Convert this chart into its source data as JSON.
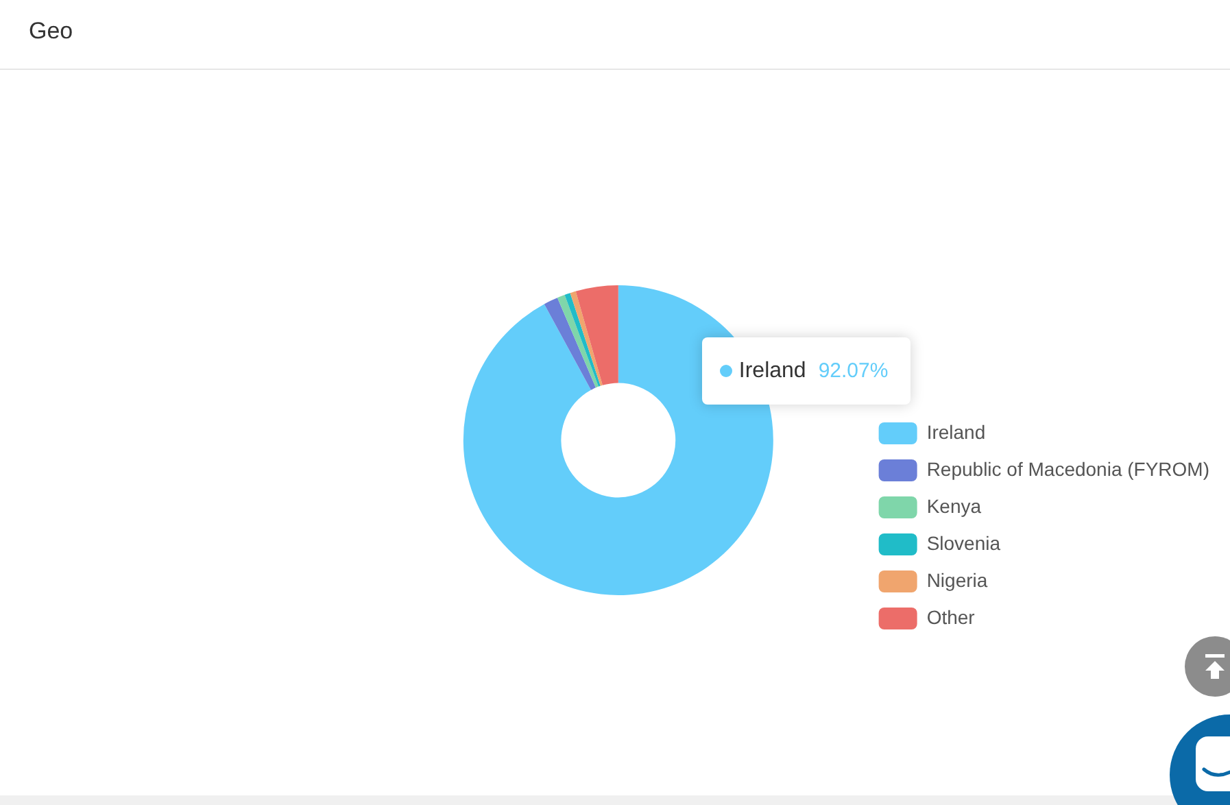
{
  "chart_data": {
    "type": "donut",
    "title": "Geo",
    "categories": [
      "Ireland",
      "Republic of Macedonia (FYROM)",
      "Kenya",
      "Slovenia",
      "Nigeria",
      "Other"
    ],
    "values": [
      92.07,
      1.5,
      0.8,
      0.6,
      0.6,
      4.43
    ],
    "colors": [
      "#63cdfa",
      "#6b7fd8",
      "#7fd6aa",
      "#20bcc8",
      "#f0a56e",
      "#ec6d69"
    ],
    "value_labels": [
      "92.07%",
      null,
      null,
      null,
      null,
      null
    ],
    "legend": "right"
  }
}
